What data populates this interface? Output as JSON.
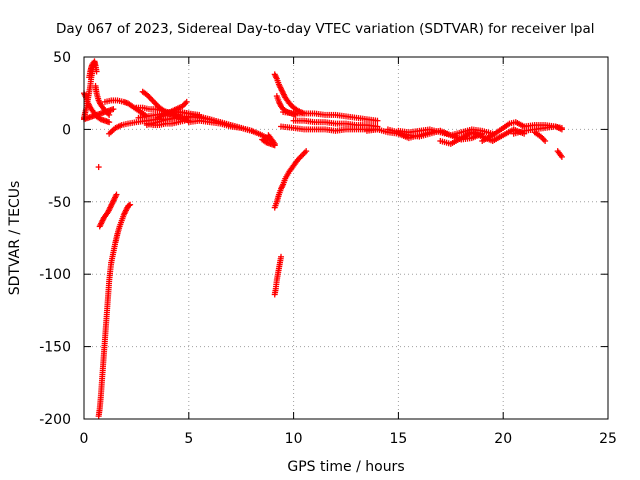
{
  "chart_data": {
    "type": "scatter",
    "title": "Day 067 of 2023, Sidereal Day-to-day VTEC variation (SDTVAR) for receiver lpal",
    "xlabel": "GPS time / hours",
    "ylabel": "SDTVAR / TECUs",
    "xlim": [
      0,
      25
    ],
    "ylim": [
      -200,
      50
    ],
    "xticks": [
      0,
      5,
      10,
      15,
      20,
      25
    ],
    "yticks": [
      -200,
      -150,
      -100,
      -50,
      0,
      50
    ],
    "grid": true,
    "marker": "plus",
    "color": "#ff0000",
    "segments": [
      {
        "x": [
          0.0,
          0.1,
          0.2,
          0.3,
          0.4,
          0.5,
          0.6,
          0.8,
          1.0,
          1.2
        ],
        "y": [
          25,
          22,
          18,
          15,
          13,
          11,
          9,
          7,
          6,
          5
        ]
      },
      {
        "x": [
          0.0,
          0.1,
          0.2,
          0.3,
          0.35,
          0.4,
          0.45,
          0.5
        ],
        "y": [
          8,
          14,
          22,
          30,
          36,
          40,
          44,
          46
        ]
      },
      {
        "x": [
          0.25,
          0.3,
          0.35,
          0.4,
          0.45,
          0.5,
          0.55,
          0.6
        ],
        "y": [
          36,
          40,
          43,
          45,
          46,
          47,
          44,
          40
        ]
      },
      {
        "x": [
          0.55,
          0.6,
          0.7,
          0.8,
          0.9,
          1.0,
          1.1,
          1.2
        ],
        "y": [
          30,
          25,
          20,
          17,
          15,
          13,
          12,
          10
        ]
      },
      {
        "x": [
          0.0,
          0.2,
          0.4,
          0.6,
          0.8,
          1.0,
          1.2,
          1.4
        ],
        "y": [
          7,
          8,
          9,
          10,
          11,
          12,
          13,
          14
        ]
      },
      {
        "x": [
          0.7
        ],
        "y": [
          -26
        ]
      },
      {
        "x": [
          0.75,
          0.85,
          0.95,
          1.05,
          1.15,
          1.25,
          1.35,
          1.45,
          1.55
        ],
        "y": [
          -67,
          -64,
          -61,
          -59,
          -57,
          -54,
          -51,
          -48,
          -45
        ]
      },
      {
        "x": [
          0.7,
          0.75,
          0.8,
          0.85,
          0.9,
          0.95,
          1.0,
          1.05,
          1.1,
          1.15,
          1.2,
          1.25,
          1.3
        ],
        "y": [
          -198,
          -193,
          -185,
          -175,
          -165,
          -155,
          -145,
          -135,
          -125,
          -115,
          -105,
          -98,
          -92
        ]
      },
      {
        "x": [
          1.3,
          1.4,
          1.5,
          1.6,
          1.7,
          1.8,
          1.9,
          2.0,
          2.1,
          2.2
        ],
        "y": [
          -92,
          -85,
          -78,
          -72,
          -67,
          -63,
          -59,
          -56,
          -53,
          -52
        ]
      },
      {
        "x": [
          1.2,
          1.5,
          1.8,
          2.1,
          2.5,
          3.0,
          3.5,
          4.0,
          4.5,
          5.0
        ],
        "y": [
          -3,
          1,
          3,
          4,
          5,
          6,
          7,
          7,
          8,
          8
        ]
      },
      {
        "x": [
          1.0,
          1.3,
          1.6,
          1.9,
          2.1,
          2.3,
          2.6,
          3.0
        ],
        "y": [
          19,
          20,
          20,
          19,
          18,
          16,
          13,
          9
        ]
      },
      {
        "x": [
          2.8,
          3.0,
          3.2,
          3.4,
          3.6,
          3.8,
          4.0,
          4.2,
          4.4,
          4.6,
          4.8,
          5.0
        ],
        "y": [
          26,
          24,
          21,
          18,
          15,
          13,
          11,
          10,
          9,
          8,
          7,
          6
        ]
      },
      {
        "x": [
          2.5,
          2.8,
          3.1,
          3.4,
          3.7,
          4.0,
          4.3,
          4.6
        ],
        "y": [
          15,
          15,
          14,
          14,
          13,
          12,
          11,
          10
        ]
      },
      {
        "x": [
          2.6,
          3.0,
          3.4,
          3.8,
          4.2,
          4.6,
          5.0,
          5.5
        ],
        "y": [
          8,
          9,
          10,
          11,
          12,
          12,
          11,
          10
        ]
      },
      {
        "x": [
          3.5,
          3.8,
          4.1,
          4.4,
          4.7,
          4.9
        ],
        "y": [
          8,
          10,
          12,
          14,
          16,
          19
        ]
      },
      {
        "x": [
          3.0,
          3.3,
          3.6,
          3.9,
          4.2,
          4.5,
          4.8
        ],
        "y": [
          4,
          3,
          3,
          4,
          4,
          5,
          6
        ]
      },
      {
        "x": [
          3.0,
          3.5,
          4.0,
          4.5,
          5.0,
          5.5,
          6.0,
          6.5,
          7.0,
          7.5,
          8.0,
          8.5,
          9.0
        ],
        "y": [
          3,
          5,
          7,
          8,
          9,
          8,
          7,
          5,
          3,
          1,
          -1,
          -4,
          -8
        ]
      },
      {
        "x": [
          4.0,
          4.5,
          5.0,
          5.5,
          6.0,
          6.5,
          7.0,
          7.5,
          8.0
        ],
        "y": [
          12,
          12,
          11,
          9,
          7,
          5,
          3,
          1,
          -1
        ]
      },
      {
        "x": [
          5.0,
          5.5,
          6.0,
          6.5,
          7.0,
          7.5
        ],
        "y": [
          5,
          6,
          5,
          4,
          2,
          1
        ]
      },
      {
        "x": [
          8.5,
          8.7,
          8.9,
          9.1
        ],
        "y": [
          -7,
          -9,
          -10,
          -11
        ]
      },
      {
        "x": [
          8.8,
          8.9,
          9.0,
          9.1
        ],
        "y": [
          -4,
          -6,
          -8,
          -10
        ]
      },
      {
        "x": [
          9.1,
          9.2,
          9.3,
          9.4,
          9.5,
          9.6,
          9.8,
          10.0,
          10.2,
          10.5
        ],
        "y": [
          38,
          35,
          31,
          28,
          25,
          22,
          18,
          15,
          13,
          11
        ]
      },
      {
        "x": [
          9.2,
          9.3,
          9.4,
          9.5,
          9.7,
          9.9,
          10.1
        ],
        "y": [
          23,
          19,
          16,
          14,
          12,
          11,
          10
        ]
      },
      {
        "x": [
          9.1,
          9.2,
          9.3,
          9.4,
          9.5,
          9.6,
          9.8,
          10.0,
          10.2,
          10.4,
          10.6
        ],
        "y": [
          -54,
          -50,
          -45,
          -41,
          -38,
          -34,
          -29,
          -25,
          -21,
          -18,
          -15
        ]
      },
      {
        "x": [
          9.1,
          9.15,
          9.2,
          9.25,
          9.3,
          9.35,
          9.4
        ],
        "y": [
          -114,
          -110,
          -104,
          -100,
          -96,
          -92,
          -88
        ]
      },
      {
        "x": [
          9.5,
          10.0,
          10.5,
          11.0,
          11.5,
          12.0,
          12.5,
          13.0,
          13.5,
          14.0
        ],
        "y": [
          12,
          11,
          11,
          11,
          10,
          10,
          9,
          8,
          7,
          6
        ]
      },
      {
        "x": [
          9.4,
          10.0,
          10.5,
          11.0,
          11.5,
          12.0,
          12.5,
          13.0,
          13.5,
          14.0
        ],
        "y": [
          2,
          1,
          0,
          0,
          0,
          -1,
          0,
          0,
          0,
          0
        ]
      },
      {
        "x": [
          10.0,
          10.5,
          11.0,
          11.5,
          12.0,
          12.5,
          13.0,
          13.5,
          14.0
        ],
        "y": [
          6,
          6,
          5,
          5,
          4,
          4,
          3,
          3,
          2
        ]
      },
      {
        "x": [
          13.5,
          14.0,
          14.5,
          15.0,
          15.5,
          16.0,
          16.5,
          17.0
        ],
        "y": [
          -1,
          0,
          -2,
          -3,
          -6,
          -4,
          -2,
          -1
        ]
      },
      {
        "x": [
          14.5,
          15.0,
          15.5,
          16.0,
          16.5,
          17.0,
          17.5,
          18.0,
          18.5,
          19.0
        ],
        "y": [
          0,
          -2,
          -4,
          -5,
          -3,
          -1,
          -4,
          -7,
          -6,
          -3
        ]
      },
      {
        "x": [
          17.0,
          17.5,
          18.0,
          18.5,
          19.0,
          19.5,
          20.0,
          20.5,
          21.0
        ],
        "y": [
          -8,
          -10,
          -6,
          -2,
          -5,
          -8,
          -4,
          0,
          -3
        ]
      },
      {
        "x": [
          19.0,
          19.5,
          20.0,
          20.3,
          20.6,
          21.0
        ],
        "y": [
          -8,
          -4,
          1,
          4,
          5,
          2
        ]
      },
      {
        "x": [
          15.0,
          15.5,
          16.0,
          16.5,
          17.0,
          17.5,
          18.0,
          18.5,
          19.0,
          19.5
        ],
        "y": [
          -1,
          -2,
          -1,
          0,
          -2,
          -4,
          -2,
          0,
          -1,
          -3
        ]
      },
      {
        "x": [
          20.5,
          21.0,
          21.5,
          22.0,
          22.5,
          22.8
        ],
        "y": [
          -3,
          -1,
          0,
          1,
          2,
          1
        ]
      },
      {
        "x": [
          21.0,
          21.5,
          22.0,
          22.5,
          22.8
        ],
        "y": [
          2,
          3,
          3,
          2,
          0
        ]
      },
      {
        "x": [
          21.5,
          21.8,
          22.0
        ],
        "y": [
          -2,
          -5,
          -8
        ]
      },
      {
        "x": [
          22.6,
          22.7,
          22.8
        ],
        "y": [
          -15,
          -17,
          -19
        ]
      }
    ]
  }
}
